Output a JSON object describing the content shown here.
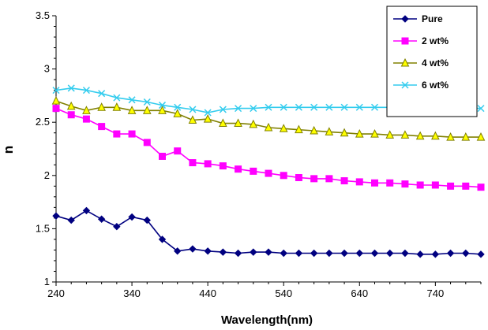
{
  "chart_data": {
    "type": "line",
    "title": "",
    "xlabel": "Wavelength(nm)",
    "ylabel": "n",
    "xlim": [
      240,
      800
    ],
    "ylim": [
      1,
      3.5
    ],
    "x_ticks": [
      "240",
      "340",
      "440",
      "540",
      "640",
      "740"
    ],
    "y_ticks": [
      "1",
      "1.5",
      "2",
      "2.5",
      "3",
      "3.5"
    ],
    "grid": false,
    "legend_position": "top-right",
    "x": [
      240,
      260,
      280,
      300,
      320,
      340,
      360,
      380,
      400,
      420,
      440,
      460,
      480,
      500,
      520,
      540,
      560,
      580,
      600,
      620,
      640,
      660,
      680,
      700,
      720,
      740,
      760,
      780,
      800
    ],
    "series": [
      {
        "name": "Pure",
        "color": "#000080",
        "marker": "diamond",
        "values": [
          1.62,
          1.58,
          1.67,
          1.59,
          1.52,
          1.61,
          1.58,
          1.4,
          1.29,
          1.31,
          1.29,
          1.28,
          1.27,
          1.28,
          1.28,
          1.27,
          1.27,
          1.27,
          1.27,
          1.27,
          1.27,
          1.27,
          1.27,
          1.27,
          1.26,
          1.26,
          1.27,
          1.27,
          1.26
        ]
      },
      {
        "name": "2 wt%",
        "color": "#ff00ff",
        "marker": "square",
        "values": [
          2.63,
          2.57,
          2.53,
          2.46,
          2.39,
          2.39,
          2.31,
          2.18,
          2.23,
          2.12,
          2.11,
          2.09,
          2.06,
          2.04,
          2.02,
          2.0,
          1.98,
          1.97,
          1.97,
          1.95,
          1.94,
          1.93,
          1.93,
          1.92,
          1.91,
          1.91,
          1.9,
          1.9,
          1.89
        ]
      },
      {
        "name": "4 wt%",
        "color": "#808000",
        "fill": "#ffff00",
        "marker": "triangle",
        "values": [
          2.7,
          2.65,
          2.61,
          2.64,
          2.64,
          2.61,
          2.61,
          2.61,
          2.58,
          2.52,
          2.53,
          2.49,
          2.49,
          2.48,
          2.45,
          2.44,
          2.43,
          2.42,
          2.41,
          2.4,
          2.39,
          2.39,
          2.38,
          2.38,
          2.37,
          2.37,
          2.36,
          2.36,
          2.36
        ]
      },
      {
        "name": "6 wt%",
        "color": "#33ccee",
        "marker": "x",
        "values": [
          2.8,
          2.82,
          2.8,
          2.77,
          2.73,
          2.71,
          2.69,
          2.66,
          2.64,
          2.62,
          2.59,
          2.62,
          2.63,
          2.63,
          2.64,
          2.64,
          2.64,
          2.64,
          2.64,
          2.64,
          2.64,
          2.64,
          2.64,
          2.64,
          2.64,
          2.63,
          2.63,
          2.63,
          2.63
        ]
      }
    ]
  }
}
